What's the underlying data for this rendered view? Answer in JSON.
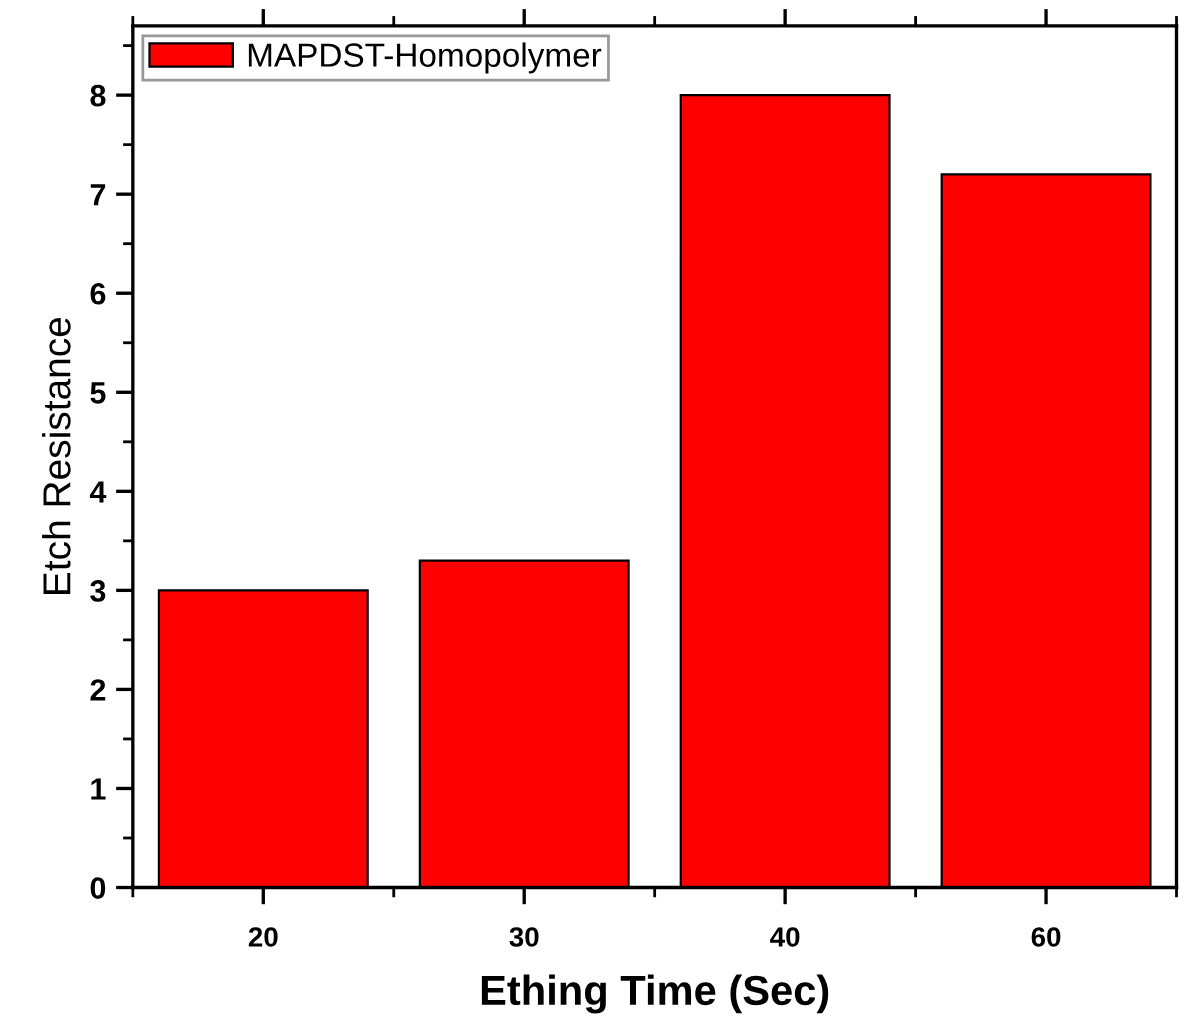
{
  "chart_data": {
    "type": "bar",
    "xlabel": "Ething Time (Sec)",
    "ylabel": "Etch Resistance",
    "categories": [
      "20",
      "30",
      "40",
      "60"
    ],
    "series": [
      {
        "name": "MAPDST-Homopolymer",
        "color": "#ff0000",
        "values": [
          3.0,
          3.3,
          8.0,
          7.2
        ]
      }
    ],
    "ylim": [
      0,
      8.7
    ],
    "yticks": [
      0,
      1,
      2,
      3,
      4,
      5,
      6,
      7,
      8
    ],
    "grid": false,
    "legend": "top left"
  }
}
